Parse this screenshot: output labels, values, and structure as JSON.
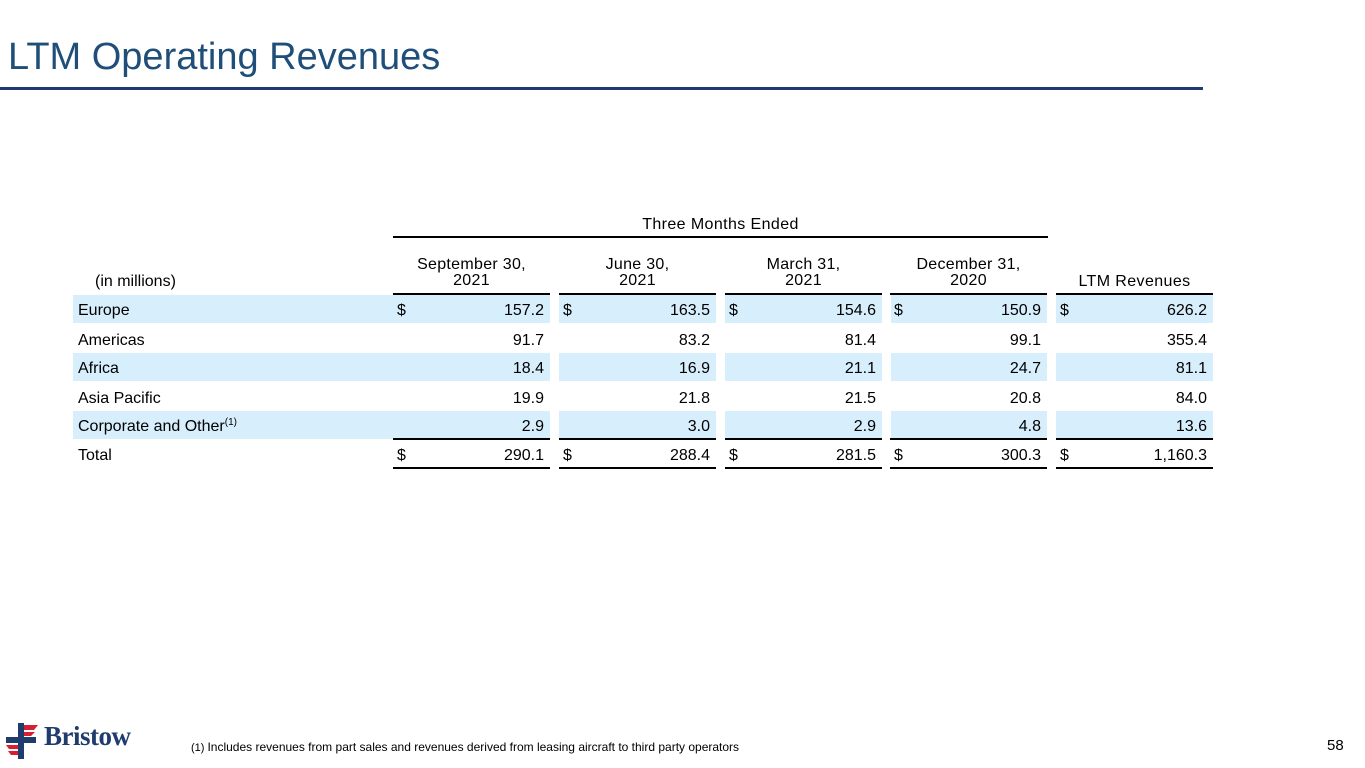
{
  "title": "LTM Operating Revenues",
  "table": {
    "group_header": "Three Months Ended",
    "units_label": "(in millions)",
    "columns": [
      {
        "line1": "September 30,",
        "line2": "2021"
      },
      {
        "line1": "June 30,",
        "line2": "2021"
      },
      {
        "line1": "March 31,",
        "line2": "2021"
      },
      {
        "line1": "December 31,",
        "line2": "2020"
      }
    ],
    "ltm_header": "LTM Revenues",
    "currency_symbol": "$",
    "rows": [
      {
        "label": "Europe",
        "values": [
          "157.2",
          "163.5",
          "154.6",
          "150.9",
          "626.2"
        ]
      },
      {
        "label": "Americas",
        "values": [
          "91.7",
          "83.2",
          "81.4",
          "99.1",
          "355.4"
        ]
      },
      {
        "label": "Africa",
        "values": [
          "18.4",
          "16.9",
          "21.1",
          "24.7",
          "81.1"
        ]
      },
      {
        "label": "Asia Pacific",
        "values": [
          "19.9",
          "21.8",
          "21.5",
          "20.8",
          "84.0"
        ]
      },
      {
        "label": "Corporate and Other",
        "sup": "(1)",
        "values": [
          "2.9",
          "3.0",
          "2.9",
          "4.8",
          "13.6"
        ]
      },
      {
        "label": "Total",
        "values": [
          "290.1",
          "288.4",
          "281.5",
          "300.3",
          "1,160.3"
        ]
      }
    ]
  },
  "footnote": {
    "marker": "(1)",
    "text": "Includes revenues from part sales and revenues derived from leasing aircraft to third party operators"
  },
  "logo_text": "Bristow",
  "page_number": "58",
  "colors": {
    "title": "#1f4e79",
    "rule": "#1f3c6e",
    "row_shade": "#d7eefc",
    "logo_red": "#d6202f"
  }
}
